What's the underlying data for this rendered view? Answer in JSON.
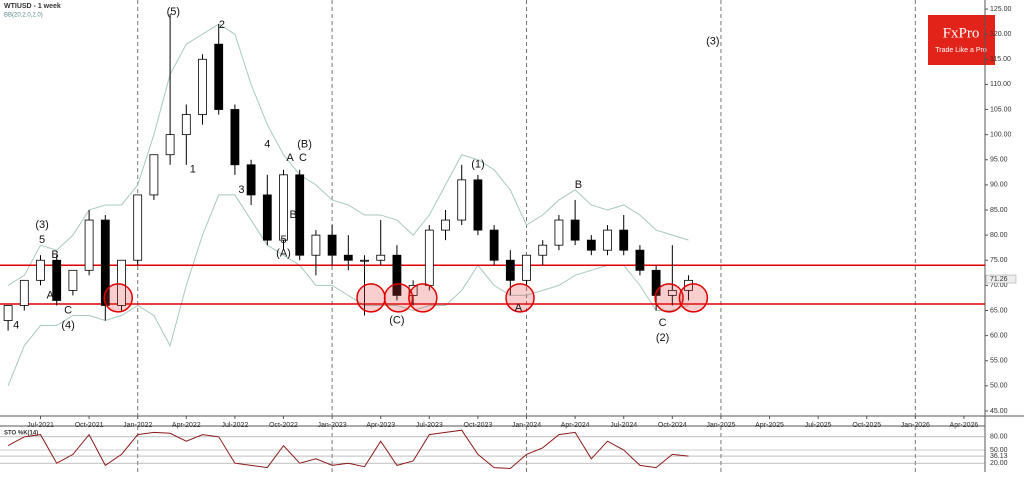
{
  "chart_data": {
    "type": "candlestick",
    "title": "WTIUSD - 1 week",
    "subtitle": "BB(20,2.0,2.0)",
    "brand": {
      "name": "FxPro",
      "tagline": "Trade Like a Pro"
    },
    "xlim": [
      -2.5,
      58.3
    ],
    "xticks": [
      {
        "value": 0,
        "label": "Jul-2021"
      },
      {
        "value": 3,
        "label": "Oct-2021"
      },
      {
        "value": 6,
        "label": "Jan-2022"
      },
      {
        "value": 9,
        "label": "Apr-2022"
      },
      {
        "value": 12,
        "label": "Jul-2022"
      },
      {
        "value": 15,
        "label": "Oct-2022"
      },
      {
        "value": 18,
        "label": "Jan-2023"
      },
      {
        "value": 21,
        "label": "Apr-2023"
      },
      {
        "value": 24,
        "label": "Jul-2023"
      },
      {
        "value": 27,
        "label": "Oct-2023"
      },
      {
        "value": 30,
        "label": "Jan-2024"
      },
      {
        "value": 33,
        "label": "Apr-2024"
      },
      {
        "value": 36,
        "label": "Jul-2024"
      },
      {
        "value": 39,
        "label": "Oct-2024"
      },
      {
        "value": 42,
        "label": "Jan-2025"
      },
      {
        "value": 45,
        "label": "Apr-2025"
      },
      {
        "value": 48,
        "label": "Jul-2025"
      },
      {
        "value": 51,
        "label": "Oct-2025"
      },
      {
        "value": 54,
        "label": "Jan-2026"
      },
      {
        "value": 57,
        "label": "Apr-2026"
      }
    ],
    "ylim": [
      44,
      126
    ],
    "yticks": [
      {
        "value": 45,
        "label": "45.00"
      },
      {
        "value": 50,
        "label": "50.00"
      },
      {
        "value": 55,
        "label": "55.00"
      },
      {
        "value": 60,
        "label": "60.00"
      },
      {
        "value": 65,
        "label": "65.00"
      },
      {
        "value": 70,
        "label": "70.00"
      },
      {
        "value": 75,
        "label": "75.00"
      },
      {
        "value": 80,
        "label": "80.00"
      },
      {
        "value": 85,
        "label": "85.00"
      },
      {
        "value": 90,
        "label": "90.00"
      },
      {
        "value": 95,
        "label": "95.00"
      },
      {
        "value": 100,
        "label": "100.00"
      },
      {
        "value": 105,
        "label": "105.00"
      },
      {
        "value": 110,
        "label": "110.00"
      },
      {
        "value": 115,
        "label": "115.00"
      },
      {
        "value": 120,
        "label": "120.00"
      },
      {
        "value": 125,
        "label": "125.00"
      }
    ],
    "last_price": {
      "value": 71.26,
      "label": "71.26"
    },
    "x": [
      -2,
      -1,
      0,
      1,
      2,
      3,
      4,
      5,
      6,
      7,
      8,
      9,
      10,
      11,
      12,
      13,
      14,
      15,
      16,
      17,
      18,
      19,
      20,
      21,
      22,
      23,
      24,
      25,
      26,
      27,
      28,
      29,
      30,
      31,
      32,
      33,
      34,
      35,
      36,
      37,
      38,
      39,
      40
    ],
    "open": [
      63,
      66,
      71,
      75,
      69,
      73,
      83,
      66,
      75,
      88,
      96,
      100,
      104,
      118,
      105,
      94,
      88,
      79,
      92,
      76,
      80,
      76,
      75,
      75,
      76,
      68,
      70,
      81,
      83,
      91,
      81,
      75,
      71,
      76,
      78,
      83,
      79,
      77,
      81,
      77,
      73,
      68,
      69
    ],
    "high": [
      66,
      71,
      76,
      76,
      73,
      85,
      84,
      75,
      88,
      96,
      124,
      106,
      116,
      122,
      106,
      95,
      92,
      93,
      93,
      81,
      82,
      80,
      76,
      83,
      78,
      71,
      82,
      85,
      94,
      92,
      82,
      77,
      76,
      79,
      84,
      87,
      80,
      82,
      84,
      78,
      74,
      78,
      72
    ],
    "low": [
      61,
      65,
      70,
      66,
      68,
      72,
      63,
      65,
      74,
      87,
      94,
      94,
      102,
      104,
      92,
      86,
      78,
      77,
      75,
      72,
      74,
      73,
      64,
      74,
      67,
      66,
      69,
      79,
      82,
      80,
      74,
      68,
      70,
      74,
      77,
      78,
      76,
      76,
      76,
      72,
      65,
      66,
      67
    ],
    "close": [
      66,
      71,
      75,
      67,
      73,
      83,
      66,
      75,
      88,
      96,
      100,
      104,
      115,
      105,
      94,
      88,
      79,
      92,
      76,
      80,
      76,
      75,
      75,
      76,
      68,
      70,
      81,
      83,
      91,
      81,
      75,
      71,
      76,
      78,
      83,
      79,
      77,
      81,
      77,
      73,
      68,
      69,
      71
    ],
    "color_up": "#ffffff",
    "color_down": "#000000",
    "bands": [
      {
        "name": "upper",
        "color": "#a8c8c0",
        "values": [
          70,
          72,
          78,
          77,
          80,
          85,
          86,
          86,
          90,
          100,
          112,
          118,
          120,
          122,
          120,
          110,
          102,
          96,
          92,
          90,
          87,
          86,
          84,
          84,
          83,
          80,
          84,
          90,
          96,
          95,
          93,
          89,
          82,
          84,
          87,
          89,
          86,
          85,
          86,
          84,
          81,
          80,
          79
        ]
      },
      {
        "name": "lower",
        "color": "#a8c8c0",
        "values": [
          50,
          58,
          62,
          62,
          64,
          64,
          63,
          64,
          66,
          64,
          58,
          70,
          80,
          88,
          88,
          83,
          78,
          76,
          74,
          70,
          70,
          68,
          66,
          66,
          66,
          65,
          66,
          66,
          69,
          74,
          70,
          68,
          68,
          69,
          70,
          72,
          73,
          74,
          74,
          70,
          65,
          65,
          66
        ]
      }
    ],
    "levels": [
      {
        "value": 74,
        "color": "#e00000"
      },
      {
        "value": 66.3,
        "color": "#e00000"
      }
    ],
    "highlight_points": [
      {
        "x": 4.8,
        "y": 67.5
      },
      {
        "x": 20.4,
        "y": 67.5
      },
      {
        "x": 22.1,
        "y": 67.5
      },
      {
        "x": 23.6,
        "y": 67.5
      },
      {
        "x": 29.6,
        "y": 67.5
      },
      {
        "x": 38.8,
        "y": 67.5
      },
      {
        "x": 40.3,
        "y": 67.5
      }
    ],
    "annotations": [
      {
        "text": "(5)",
        "x": 8.2,
        "y": 124.4
      },
      {
        "text": "2",
        "x": 11.2,
        "y": 121.8
      },
      {
        "text": "1",
        "x": 9.4,
        "y": 93
      },
      {
        "text": "4",
        "x": 14.0,
        "y": 98
      },
      {
        "text": "3",
        "x": 12.4,
        "y": 89
      },
      {
        "text": "(B)",
        "x": 16.3,
        "y": 98
      },
      {
        "text": "C",
        "x": 16.2,
        "y": 95.3
      },
      {
        "text": "A",
        "x": 15.4,
        "y": 95.3
      },
      {
        "text": "B",
        "x": 15.6,
        "y": 84
      },
      {
        "text": "5",
        "x": 15.0,
        "y": 79
      },
      {
        "text": "(A)",
        "x": 15.0,
        "y": 76.3
      },
      {
        "text": "(3)",
        "x": 0.1,
        "y": 82
      },
      {
        "text": "5",
        "x": 0.1,
        "y": 79
      },
      {
        "text": "B",
        "x": 0.9,
        "y": 76
      },
      {
        "text": "A",
        "x": 0.6,
        "y": 68
      },
      {
        "text": "C",
        "x": 1.7,
        "y": 65
      },
      {
        "text": "(4)",
        "x": 1.7,
        "y": 62
      },
      {
        "text": "4",
        "x": -1.5,
        "y": 62
      },
      {
        "text": "(C)",
        "x": 22.0,
        "y": 63
      },
      {
        "text": "(1)",
        "x": 27.0,
        "y": 94
      },
      {
        "text": "A",
        "x": 29.5,
        "y": 65.5
      },
      {
        "text": "B",
        "x": 33.2,
        "y": 90
      },
      {
        "text": "C",
        "x": 38.4,
        "y": 62.5
      },
      {
        "text": "(2)",
        "x": 38.4,
        "y": 59.5
      },
      {
        "text": "(3)",
        "x": 41.5,
        "y": 118.5
      }
    ],
    "oscillator": {
      "name": "STO %K(14)",
      "color": "#8b1a1a",
      "ylim": [
        0,
        100
      ],
      "yticks": [
        {
          "value": 80,
          "label": "80.00"
        },
        {
          "value": 50,
          "label": "50.00"
        },
        {
          "value": 36.13,
          "label": "36.13"
        },
        {
          "value": 20,
          "label": "20.00"
        }
      ],
      "values": [
        60,
        80,
        85,
        20,
        40,
        85,
        15,
        40,
        85,
        90,
        88,
        70,
        85,
        80,
        20,
        15,
        10,
        60,
        20,
        30,
        15,
        20,
        12,
        70,
        15,
        25,
        85,
        90,
        95,
        40,
        10,
        8,
        40,
        55,
        85,
        90,
        30,
        70,
        50,
        15,
        10,
        40,
        36.13
      ]
    }
  }
}
